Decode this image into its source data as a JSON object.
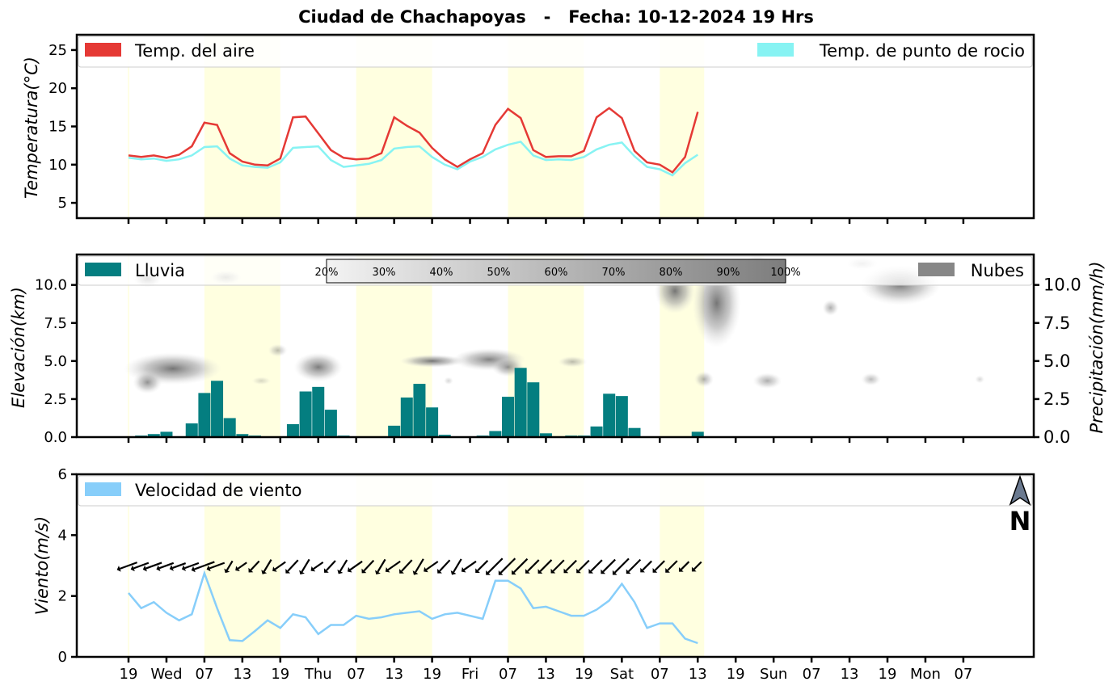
{
  "title": "Ciudad de Chachapoyas   -   Fecha: 10-12-2024 19 Hrs",
  "time_ticks": [
    "19",
    "Wed",
    "07",
    "13",
    "19",
    "Thu",
    "07",
    "13",
    "19",
    "Fri",
    "07",
    "13",
    "19",
    "Sat",
    "07",
    "13",
    "19",
    "Sun",
    "07",
    "13",
    "19",
    "Mon",
    "07"
  ],
  "chart_data": [
    {
      "type": "line",
      "ylabel": "Temperatura(°C)",
      "ylim": [
        3,
        27
      ],
      "yticks": [
        "5",
        "10",
        "15",
        "20",
        "25"
      ],
      "legend": [
        "Temp. del aire",
        "Temp. de punto de rocio"
      ],
      "colors": {
        "air": "#e53935",
        "dew": "#87f3f3",
        "day_shade": "#ffffe0"
      },
      "series": [
        {
          "name": "Temp. del aire",
          "values": [
            11.2,
            11.0,
            11.2,
            10.9,
            11.3,
            12.4,
            15.5,
            15.2,
            11.5,
            10.4,
            10.0,
            9.9,
            10.8,
            16.2,
            16.3,
            14.1,
            11.9,
            10.9,
            10.7,
            10.8,
            11.5,
            16.2,
            15.1,
            14.2,
            12.2,
            10.7,
            9.7,
            10.7,
            11.5,
            15.2,
            17.3,
            16.1,
            11.9,
            11.0,
            11.1,
            11.1,
            11.8,
            16.2,
            17.4,
            16.1,
            11.8,
            10.3,
            10.0,
            9.0,
            11.0,
            16.9
          ]
        },
        {
          "name": "Temp. de punto de rocio",
          "values": [
            10.9,
            10.7,
            10.8,
            10.5,
            10.7,
            11.2,
            12.3,
            12.4,
            10.8,
            9.9,
            9.7,
            9.6,
            10.3,
            12.2,
            12.3,
            12.4,
            10.6,
            9.7,
            9.9,
            10.1,
            10.6,
            12.1,
            12.3,
            12.4,
            11.0,
            10.0,
            9.4,
            10.4,
            11.0,
            12.0,
            12.6,
            13.0,
            11.2,
            10.6,
            10.7,
            10.6,
            11.0,
            12.0,
            12.6,
            12.9,
            11.1,
            9.7,
            9.4,
            8.6,
            10.2,
            11.3
          ]
        }
      ]
    },
    {
      "type": "bar",
      "ylabel_left": "Elevación(km)",
      "ylabel_right": "Precipitación(mm/h)",
      "ylim": [
        0,
        12
      ],
      "yticks_left": [
        "0.0",
        "2.5",
        "5.0",
        "7.5",
        "10.0"
      ],
      "yticks_right": [
        "0.0",
        "2.5",
        "5.0",
        "7.5",
        "10.0"
      ],
      "legend": [
        "Lluvia",
        "Nubes"
      ],
      "colorbar_labels": [
        "20%",
        "30%",
        "40%",
        "50%",
        "60%",
        "70%",
        "80%",
        "90%",
        "100%"
      ],
      "colors": {
        "rain": "#047e80",
        "clouds": "#878787"
      },
      "series": [
        {
          "name": "Lluvia",
          "values": [
            0,
            0.1,
            0.2,
            0.35,
            0.05,
            0.9,
            2.9,
            3.7,
            1.25,
            0.2,
            0.1,
            0.05,
            0,
            0.85,
            3.0,
            3.3,
            1.8,
            0.1,
            0,
            0,
            0.05,
            0.75,
            2.6,
            3.5,
            1.95,
            0.15,
            0.05,
            0.05,
            0.1,
            0.4,
            2.65,
            4.55,
            3.6,
            0.25,
            0,
            0.1,
            0.1,
            0.7,
            2.85,
            2.7,
            0.6,
            0,
            0,
            0,
            0,
            0.35
          ]
        }
      ]
    },
    {
      "type": "line",
      "ylabel": "Viento(m/s)",
      "ylim": [
        0,
        6
      ],
      "yticks": [
        "0",
        "2",
        "4",
        "6"
      ],
      "legend": [
        "Velocidad de viento"
      ],
      "north_label": "N",
      "colors": {
        "wind": "#87cefa"
      },
      "series": [
        {
          "name": "Velocidad de viento",
          "values": [
            2.1,
            1.6,
            1.8,
            1.45,
            1.2,
            1.4,
            2.75,
            1.6,
            0.55,
            0.52,
            0.85,
            1.2,
            0.95,
            1.4,
            1.3,
            0.75,
            1.05,
            1.05,
            1.35,
            1.25,
            1.3,
            1.4,
            1.45,
            1.5,
            1.25,
            1.4,
            1.45,
            1.35,
            1.25,
            2.5,
            2.5,
            2.25,
            1.6,
            1.65,
            1.5,
            1.35,
            1.35,
            1.55,
            1.85,
            2.4,
            1.8,
            0.95,
            1.1,
            1.1,
            0.6,
            0.45
          ]
        }
      ]
    }
  ]
}
